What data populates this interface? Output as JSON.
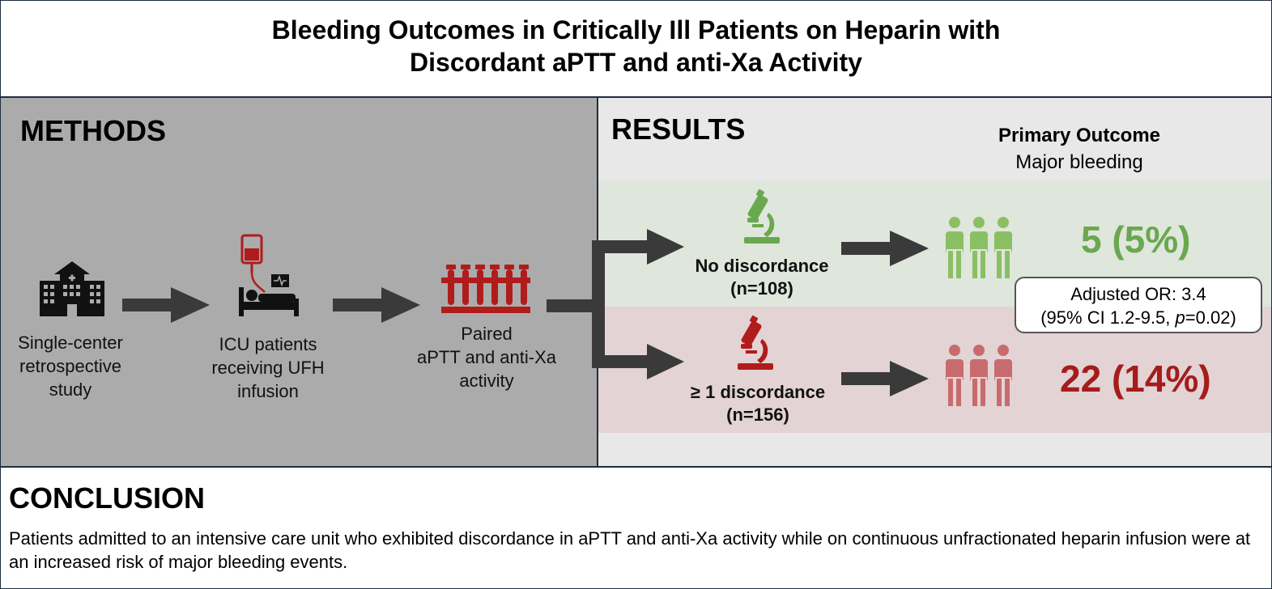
{
  "title": {
    "line1": "Bleeding Outcomes in Critically Ill Patients on Heparin with",
    "line2": "Discordant aPTT and anti-Xa Activity"
  },
  "methods": {
    "heading": "METHODS",
    "steps": [
      {
        "line1": "Single-center",
        "line2": "retrospective",
        "line3": "study",
        "icon": "hospital-icon"
      },
      {
        "line1": "ICU patients",
        "line2": "receiving UFH",
        "line3": "infusion",
        "icon": "icu-patient-infusion-icon"
      },
      {
        "line1": "Paired",
        "line2": "aPTT and anti-Xa",
        "line3": "activity",
        "icon": "blood-tubes-icon"
      }
    ]
  },
  "results": {
    "heading": "RESULTS",
    "primary_outcome": {
      "title": "Primary Outcome",
      "subtitle": "Major bleeding"
    },
    "groups": [
      {
        "label": "No discordance",
        "n": "(n=108)",
        "count": "5 (5%)",
        "color": "#6aa84f",
        "icon": "microscope-icon"
      },
      {
        "label": "≥ 1 discordance",
        "n": "(n=156)",
        "count": "22 (14%)",
        "color": "#a51c1c",
        "icon": "microscope-icon"
      }
    ],
    "adjusted_or": {
      "line1": "Adjusted OR: 3.4",
      "line2_prefix": "(95% CI 1.2-9.5, ",
      "line2_p": "p",
      "line2_suffix": "=0.02)"
    }
  },
  "conclusion": {
    "heading": "CONCLUSION",
    "text": "Patients admitted to an intensive care unit who exhibited discordance in aPTT and anti-Xa activity while on continuous unfractionated heparin infusion were at an increased risk of major bleeding events."
  },
  "colors": {
    "arrow": "#3a3a3a",
    "green": "#6aa84f",
    "red": "#a51c1c",
    "people_green": "#8bbf63",
    "people_red": "#c86b6e"
  }
}
